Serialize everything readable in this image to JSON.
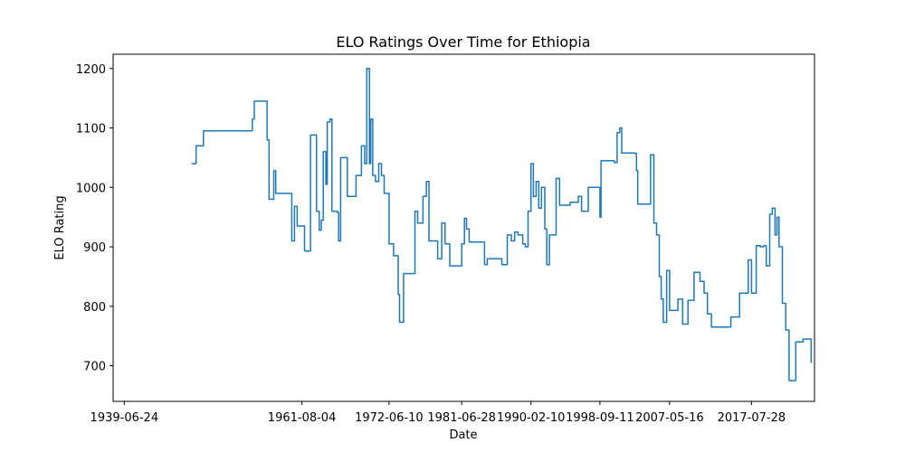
{
  "chart_data": {
    "type": "line",
    "title": "ELO Ratings Over Time for Ethiopia",
    "xlabel": "Date",
    "ylabel": "ELO Rating",
    "grid": false,
    "x_ticks": [
      "1939-06-24",
      "1961-08-04",
      "1972-06-10",
      "1981-06-28",
      "1990-02-10",
      "1998-09-11",
      "2007-05-16",
      "2017-07-28"
    ],
    "y_ticks": [
      700,
      800,
      900,
      1000,
      1100,
      1200
    ],
    "xlim": [
      "1938-02-01",
      "2025-06-01"
    ],
    "ylim": [
      640,
      1224
    ],
    "series": [
      {
        "color": "#1f77b4",
        "step": true,
        "points": [
          [
            "1947-11-01",
            1040
          ],
          [
            "1948-06-01",
            1070
          ],
          [
            "1949-05-01",
            1095
          ],
          [
            "1951-01-01",
            1095
          ],
          [
            "1955-06-01",
            1115
          ],
          [
            "1955-09-01",
            1145
          ],
          [
            "1956-08-01",
            1145
          ],
          [
            "1957-04-01",
            1080
          ],
          [
            "1957-07-01",
            980
          ],
          [
            "1958-02-01",
            1028
          ],
          [
            "1958-05-01",
            990
          ],
          [
            "1959-01-01",
            990
          ],
          [
            "1960-01-01",
            990
          ],
          [
            "1960-05-01",
            910
          ],
          [
            "1960-09-01",
            968
          ],
          [
            "1961-01-01",
            935
          ],
          [
            "1961-08-04",
            935
          ],
          [
            "1961-12-01",
            893
          ],
          [
            "1962-06-01",
            893
          ],
          [
            "1962-09-01",
            1088
          ],
          [
            "1963-06-01",
            960
          ],
          [
            "1963-10-01",
            928
          ],
          [
            "1964-01-01",
            945
          ],
          [
            "1964-04-01",
            1060
          ],
          [
            "1964-08-01",
            1005
          ],
          [
            "1964-10-01",
            1110
          ],
          [
            "1965-02-01",
            1115
          ],
          [
            "1965-05-01",
            960
          ],
          [
            "1966-01-01",
            958
          ],
          [
            "1966-03-01",
            910
          ],
          [
            "1966-06-01",
            1050
          ],
          [
            "1967-04-01",
            985
          ],
          [
            "1968-05-01",
            1020
          ],
          [
            "1969-01-01",
            1070
          ],
          [
            "1969-06-01",
            1040
          ],
          [
            "1969-09-01",
            1200
          ],
          [
            "1970-01-01",
            1040
          ],
          [
            "1970-03-01",
            1115
          ],
          [
            "1970-06-01",
            1020
          ],
          [
            "1970-10-01",
            1010
          ],
          [
            "1971-03-01",
            1040
          ],
          [
            "1971-07-01",
            1020
          ],
          [
            "1971-11-01",
            990
          ],
          [
            "1972-06-10",
            905
          ],
          [
            "1973-01-01",
            885
          ],
          [
            "1973-08-01",
            820
          ],
          [
            "1973-10-01",
            773
          ],
          [
            "1974-04-01",
            855
          ],
          [
            "1975-06-01",
            855
          ],
          [
            "1975-09-01",
            960
          ],
          [
            "1976-01-01",
            940
          ],
          [
            "1976-09-01",
            985
          ],
          [
            "1977-02-01",
            1010
          ],
          [
            "1977-06-01",
            910
          ],
          [
            "1978-07-01",
            880
          ],
          [
            "1979-01-01",
            940
          ],
          [
            "1979-06-01",
            905
          ],
          [
            "1980-01-01",
            868
          ],
          [
            "1981-01-01",
            868
          ],
          [
            "1981-06-28",
            905
          ],
          [
            "1981-11-01",
            948
          ],
          [
            "1982-02-01",
            930
          ],
          [
            "1982-06-01",
            908
          ],
          [
            "1983-02-01",
            908
          ],
          [
            "1984-01-01",
            908
          ],
          [
            "1984-05-01",
            870
          ],
          [
            "1984-09-01",
            880
          ],
          [
            "1986-01-01",
            880
          ],
          [
            "1986-07-01",
            870
          ],
          [
            "1987-03-01",
            920
          ],
          [
            "1987-09-01",
            910
          ],
          [
            "1988-02-01",
            925
          ],
          [
            "1988-07-01",
            920
          ],
          [
            "1989-02-01",
            905
          ],
          [
            "1989-06-01",
            900
          ],
          [
            "1989-10-01",
            960
          ],
          [
            "1990-02-10",
            1040
          ],
          [
            "1990-06-01",
            985
          ],
          [
            "1990-10-01",
            1010
          ],
          [
            "1991-02-01",
            965
          ],
          [
            "1991-06-01",
            1000
          ],
          [
            "1991-11-01",
            930
          ],
          [
            "1992-02-01",
            870
          ],
          [
            "1992-06-01",
            920
          ],
          [
            "1993-04-01",
            1015
          ],
          [
            "1993-09-01",
            970
          ],
          [
            "1995-01-01",
            975
          ],
          [
            "1996-01-01",
            985
          ],
          [
            "1996-06-01",
            960
          ],
          [
            "1997-04-01",
            1000
          ],
          [
            "1998-06-01",
            1000
          ],
          [
            "1998-09-11",
            950
          ],
          [
            "1998-11-01",
            1045
          ],
          [
            "2000-07-01",
            1042
          ],
          [
            "2000-11-01",
            1092
          ],
          [
            "2001-03-01",
            1100
          ],
          [
            "2001-06-01",
            1058
          ],
          [
            "2002-05-01",
            1058
          ],
          [
            "2003-02-01",
            1057
          ],
          [
            "2003-04-01",
            1028
          ],
          [
            "2003-06-01",
            972
          ],
          [
            "2004-05-01",
            972
          ],
          [
            "2005-01-01",
            1055
          ],
          [
            "2005-06-01",
            940
          ],
          [
            "2005-10-01",
            920
          ],
          [
            "2006-02-01",
            850
          ],
          [
            "2006-05-01",
            812
          ],
          [
            "2006-08-01",
            773
          ],
          [
            "2007-01-01",
            860
          ],
          [
            "2007-05-16",
            793
          ],
          [
            "2008-01-01",
            793
          ],
          [
            "2008-06-01",
            812
          ],
          [
            "2009-01-01",
            770
          ],
          [
            "2009-09-01",
            810
          ],
          [
            "2010-06-01",
            857
          ],
          [
            "2011-03-01",
            842
          ],
          [
            "2011-09-01",
            822
          ],
          [
            "2012-02-01",
            787
          ],
          [
            "2012-08-01",
            765
          ],
          [
            "2013-01-01",
            765
          ],
          [
            "2014-06-01",
            765
          ],
          [
            "2015-01-01",
            782
          ],
          [
            "2015-08-01",
            782
          ],
          [
            "2016-02-01",
            822
          ],
          [
            "2016-09-01",
            822
          ],
          [
            "2017-03-01",
            878
          ],
          [
            "2017-07-28",
            822
          ],
          [
            "2018-03-01",
            902
          ],
          [
            "2018-09-01",
            900
          ],
          [
            "2019-02-01",
            902
          ],
          [
            "2019-06-01",
            868
          ],
          [
            "2019-11-01",
            955
          ],
          [
            "2020-03-01",
            965
          ],
          [
            "2020-07-01",
            920
          ],
          [
            "2020-10-01",
            950
          ],
          [
            "2021-01-01",
            900
          ],
          [
            "2021-06-01",
            805
          ],
          [
            "2021-11-01",
            760
          ],
          [
            "2022-04-01",
            675
          ],
          [
            "2022-10-01",
            675
          ],
          [
            "2023-02-01",
            740
          ],
          [
            "2023-07-01",
            740
          ],
          [
            "2024-01-01",
            745
          ],
          [
            "2024-06-01",
            745
          ],
          [
            "2025-01-01",
            705
          ]
        ]
      }
    ]
  }
}
